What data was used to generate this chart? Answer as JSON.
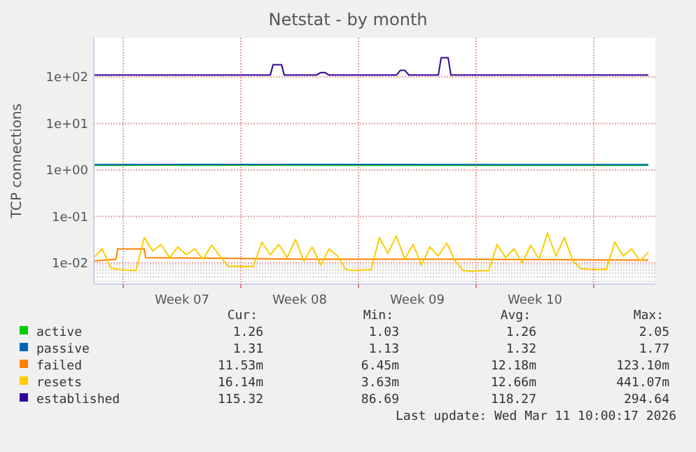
{
  "chart_data": {
    "type": "line",
    "title": "Netstat - by month",
    "ylabel": "TCP connections",
    "log": "y",
    "grid": true,
    "legend": "bottom",
    "marker": "none",
    "line_style": "solid",
    "xlim": [
      "2026-02-07T06:00",
      "2026-03-12T16:00"
    ],
    "xticks": [
      {
        "value": "2026-02-09",
        "label": null
      },
      {
        "value": "2026-02-12T12:00",
        "label": "Week 07"
      },
      {
        "value": "2026-02-16",
        "label": null
      },
      {
        "value": "2026-02-19T12:00",
        "label": "Week 08"
      },
      {
        "value": "2026-02-23",
        "label": null
      },
      {
        "value": "2026-02-26T12:00",
        "label": "Week 09"
      },
      {
        "value": "2026-03-02",
        "label": null
      },
      {
        "value": "2026-03-05T12:00",
        "label": "Week 10"
      },
      {
        "value": "2026-03-09",
        "label": null
      }
    ],
    "ylim": [
      0.0035,
      700
    ],
    "yticks": [
      {
        "value": 0.01,
        "label": "1e-02"
      },
      {
        "value": 0.1,
        "label": "1e-01"
      },
      {
        "value": 1,
        "label": "1e+00"
      },
      {
        "value": 10,
        "label": "1e+01"
      },
      {
        "value": 100,
        "label": "1e+02"
      }
    ],
    "series": [
      {
        "name": "active",
        "color": "#00cc00",
        "x": [
          "2026-02-07T06:00",
          "2026-02-16T00:00",
          "2026-02-24T00:00",
          "2026-03-04T00:00",
          "2026-03-12T06:00"
        ],
        "values": [
          1.26,
          1.27,
          1.26,
          1.26,
          1.26
        ]
      },
      {
        "name": "passive",
        "color": "#0066b3",
        "x": [
          "2026-02-07T06:00",
          "2026-02-16T00:00",
          "2026-02-24T00:00",
          "2026-03-04T00:00",
          "2026-03-12T06:00"
        ],
        "values": [
          1.31,
          1.32,
          1.32,
          1.31,
          1.31
        ]
      },
      {
        "name": "failed",
        "color": "#ff8000",
        "x": [
          "2026-02-07T06:00",
          "2026-02-08T14:00",
          "2026-02-08T16:00",
          "2026-02-10T06:00",
          "2026-02-10T08:00",
          "2026-02-20T00:00",
          "2026-03-01T00:00",
          "2026-03-12T06:00"
        ],
        "values": [
          0.011,
          0.012,
          0.02,
          0.02,
          0.013,
          0.012,
          0.012,
          0.0115
        ]
      },
      {
        "name": "resets",
        "color": "#ffcc00",
        "x": [
          "2026-02-07T06:00",
          "2026-02-07T18:00",
          "2026-02-08T06:00",
          "2026-02-08T18:00",
          "2026-02-09T06:00",
          "2026-02-09T18:00",
          "2026-02-10T06:00",
          "2026-02-10T18:00",
          "2026-02-11T06:00",
          "2026-02-11T18:00",
          "2026-02-12T06:00",
          "2026-02-12T18:00",
          "2026-02-13T06:00",
          "2026-02-13T18:00",
          "2026-02-14T06:00",
          "2026-02-14T18:00",
          "2026-02-15T06:00",
          "2026-02-15T18:00",
          "2026-02-16T06:00",
          "2026-02-16T18:00",
          "2026-02-17T06:00",
          "2026-02-17T18:00",
          "2026-02-18T06:00",
          "2026-02-18T18:00",
          "2026-02-19T06:00",
          "2026-02-19T18:00",
          "2026-02-20T06:00",
          "2026-02-20T18:00",
          "2026-02-21T06:00",
          "2026-02-21T18:00",
          "2026-02-22T06:00",
          "2026-02-22T18:00",
          "2026-02-23T06:00",
          "2026-02-23T18:00",
          "2026-02-24T06:00",
          "2026-02-24T18:00",
          "2026-02-25T06:00",
          "2026-02-25T18:00",
          "2026-02-26T06:00",
          "2026-02-26T18:00",
          "2026-02-27T06:00",
          "2026-02-27T18:00",
          "2026-02-28T06:00",
          "2026-02-28T18:00",
          "2026-03-01T06:00",
          "2026-03-01T18:00",
          "2026-03-02T06:00",
          "2026-03-02T18:00",
          "2026-03-03T06:00",
          "2026-03-03T18:00",
          "2026-03-04T06:00",
          "2026-03-04T18:00",
          "2026-03-05T06:00",
          "2026-03-05T18:00",
          "2026-03-06T06:00",
          "2026-03-06T18:00",
          "2026-03-07T06:00",
          "2026-03-07T18:00",
          "2026-03-08T06:00",
          "2026-03-08T18:00",
          "2026-03-09T06:00",
          "2026-03-09T18:00",
          "2026-03-10T06:00",
          "2026-03-10T18:00",
          "2026-03-11T06:00",
          "2026-03-11T18:00",
          "2026-03-12T06:00"
        ],
        "values": [
          0.013,
          0.02,
          0.0078,
          0.0072,
          0.007,
          0.0068,
          0.035,
          0.018,
          0.025,
          0.013,
          0.022,
          0.015,
          0.02,
          0.012,
          0.024,
          0.014,
          0.0085,
          0.0085,
          0.0083,
          0.0085,
          0.028,
          0.015,
          0.025,
          0.013,
          0.032,
          0.011,
          0.022,
          0.009,
          0.02,
          0.014,
          0.0072,
          0.0068,
          0.007,
          0.0072,
          0.035,
          0.016,
          0.038,
          0.012,
          0.025,
          0.009,
          0.022,
          0.014,
          0.027,
          0.011,
          0.0068,
          0.0066,
          0.0068,
          0.0068,
          0.025,
          0.013,
          0.02,
          0.01,
          0.024,
          0.012,
          0.044,
          0.014,
          0.035,
          0.011,
          0.0075,
          0.0073,
          0.0072,
          0.0074,
          0.028,
          0.014,
          0.02,
          0.011,
          0.017
        ]
      },
      {
        "name": "established",
        "color": "#330099",
        "x": [
          "2026-02-07T06:00",
          "2026-02-17T18:00",
          "2026-02-17T22:00",
          "2026-02-18T10:00",
          "2026-02-18T14:00",
          "2026-02-20T12:00",
          "2026-02-20T18:00",
          "2026-02-21T00:00",
          "2026-02-21T06:00",
          "2026-02-25T06:00",
          "2026-02-25T12:00",
          "2026-02-25T18:00",
          "2026-02-26T00:00",
          "2026-02-27T18:00",
          "2026-02-27T22:00",
          "2026-02-28T08:00",
          "2026-02-28T12:00",
          "2026-03-12T06:00"
        ],
        "values": [
          110,
          110,
          185,
          185,
          110,
          110,
          125,
          125,
          110,
          110,
          140,
          140,
          110,
          110,
          260,
          260,
          110,
          110
        ]
      }
    ],
    "annotations": [
      "Cur:",
      "Min:",
      "Avg:",
      "Max:",
      "1.26",
      "1.03",
      "1.26",
      "2.05",
      "1.31",
      "1.13",
      "1.32",
      "1.77",
      "11.53m",
      "6.45m",
      "12.18m",
      "123.10m",
      "16.14m",
      "3.63m",
      "12.66m",
      "441.07m",
      "115.32",
      "86.69",
      "118.27",
      "294.64",
      "Last update: Wed Mar 11 10:00:17 2026"
    ]
  }
}
